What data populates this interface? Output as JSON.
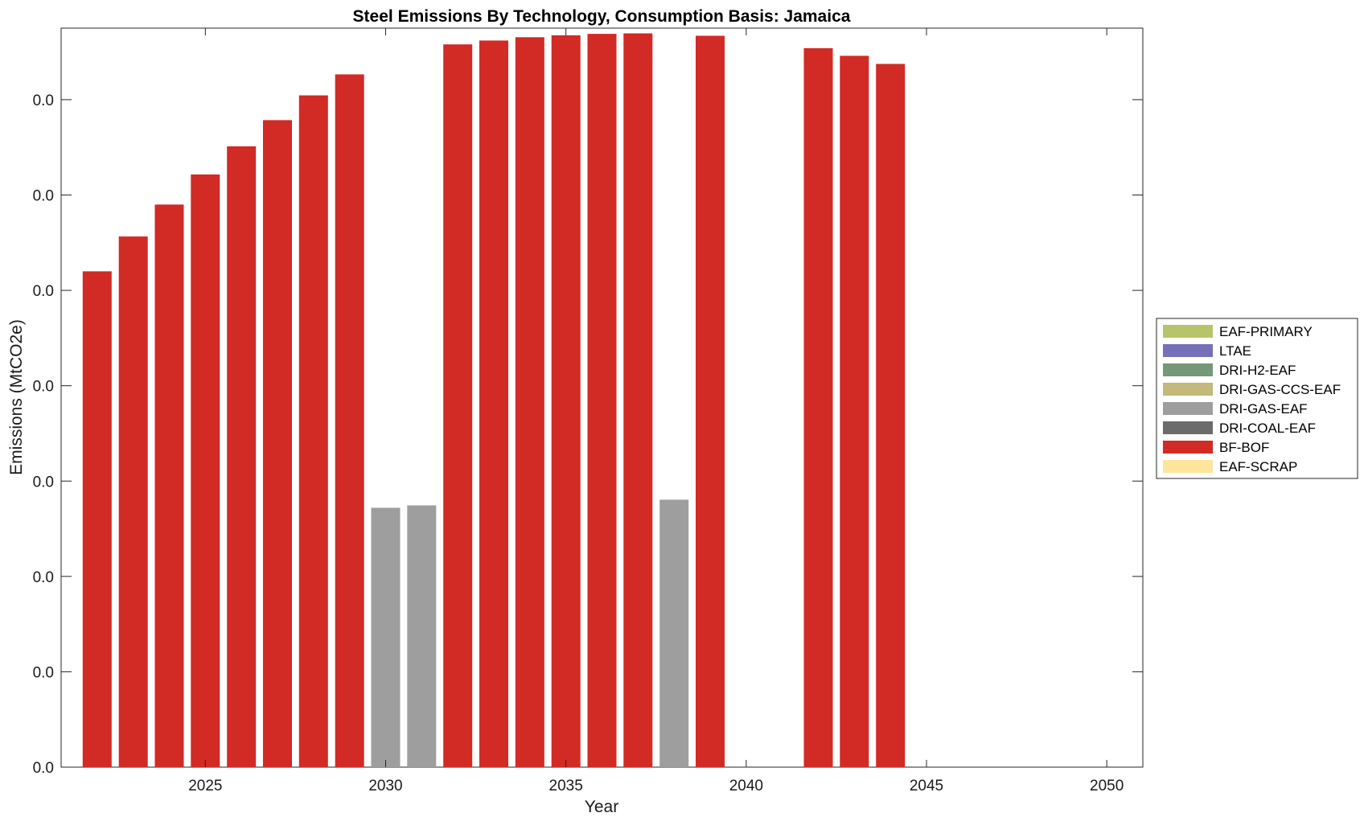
{
  "chart_data": {
    "type": "bar",
    "title": "Steel Emissions By Technology, Consumption Basis: Jamaica",
    "xlabel": "Year",
    "ylabel": "Emissions (MtCO2e)",
    "xlim": [
      2021,
      2051
    ],
    "ylim": [
      0,
      0.0155
    ],
    "x_ticks": [
      2025,
      2030,
      2035,
      2040,
      2045,
      2050
    ],
    "y_ticks": [
      0,
      0.002,
      0.004,
      0.006,
      0.008,
      0.01,
      0.012,
      0.014
    ],
    "y_tick_labels": [
      "0.0",
      "0.0",
      "0.0",
      "0.0",
      "0.0",
      "0.0",
      "0.0",
      "0.0"
    ],
    "grid": false,
    "legend_position": "right",
    "x": [
      2022,
      2023,
      2024,
      2025,
      2026,
      2027,
      2028,
      2029,
      2030,
      2031,
      2032,
      2033,
      2034,
      2035,
      2036,
      2037,
      2038,
      2039,
      2040,
      2041,
      2042,
      2043,
      2044,
      2045,
      2046,
      2047,
      2048,
      2049,
      2050
    ],
    "series": [
      {
        "name": "EAF-PRIMARY",
        "color": "#b8c46a",
        "values": [
          0,
          0,
          0,
          0,
          0,
          0,
          0,
          0,
          0,
          0,
          0,
          0,
          0,
          0,
          0,
          0,
          0,
          0,
          0,
          0,
          0,
          0,
          0,
          0,
          0,
          0,
          0,
          0,
          0
        ]
      },
      {
        "name": "LTAE",
        "color": "#7570b8",
        "values": [
          0,
          0,
          0,
          0,
          0,
          0,
          0,
          0,
          0,
          0,
          0,
          0,
          0,
          0,
          0,
          0,
          0,
          0,
          0,
          0,
          0,
          0,
          0,
          0,
          0,
          0,
          0,
          0,
          0
        ]
      },
      {
        "name": "DRI-H2-EAF",
        "color": "#76977a",
        "values": [
          0,
          0,
          0,
          0,
          0,
          0,
          0,
          0,
          0,
          0,
          0,
          0,
          0,
          0,
          0,
          0,
          0,
          0,
          0,
          0,
          0,
          0,
          0,
          0,
          0,
          0,
          0,
          0,
          0
        ]
      },
      {
        "name": "DRI-GAS-CCS-EAF",
        "color": "#c2b97a",
        "values": [
          0,
          0,
          0,
          0,
          0,
          0,
          0,
          0,
          0,
          0,
          0,
          0,
          0,
          0,
          0,
          0,
          0,
          0,
          0,
          0,
          0,
          0,
          0,
          0,
          0,
          0,
          0,
          0,
          0
        ]
      },
      {
        "name": "DRI-GAS-EAF",
        "color": "#9e9e9e",
        "values": [
          0,
          0,
          0,
          0,
          0,
          0,
          0,
          0,
          0.00544,
          0.00549,
          0,
          0,
          0,
          0,
          0,
          0,
          0.00561,
          0,
          0,
          0,
          0,
          0,
          0,
          0,
          0,
          0,
          0,
          0,
          0
        ]
      },
      {
        "name": "DRI-COAL-EAF",
        "color": "#6b6b6b",
        "values": [
          0,
          0,
          0,
          0,
          0,
          0,
          0,
          0,
          0,
          0,
          0,
          0,
          0,
          0,
          0,
          0,
          0,
          0,
          0,
          0,
          0,
          0,
          0,
          0,
          0,
          0,
          0,
          0,
          0
        ]
      },
      {
        "name": "BF-BOF",
        "color": "#d22a25",
        "values": [
          0.0104,
          0.01113,
          0.0118,
          0.01243,
          0.01302,
          0.01357,
          0.01409,
          0.01453,
          0,
          0,
          0.01516,
          0.01524,
          0.01531,
          0.01535,
          0.01538,
          0.01539,
          0,
          0.01534,
          0,
          0,
          0.01508,
          0.01492,
          0.01475,
          0,
          0,
          0,
          0,
          0,
          0
        ]
      },
      {
        "name": "EAF-SCRAP",
        "color": "#ffe599",
        "values": [
          0,
          0,
          0,
          0,
          0,
          0,
          0,
          0,
          0,
          0,
          0,
          0,
          0,
          0,
          0,
          0,
          0,
          0,
          0,
          0,
          0,
          0,
          0,
          0,
          0,
          0,
          0,
          0,
          0
        ]
      }
    ]
  }
}
